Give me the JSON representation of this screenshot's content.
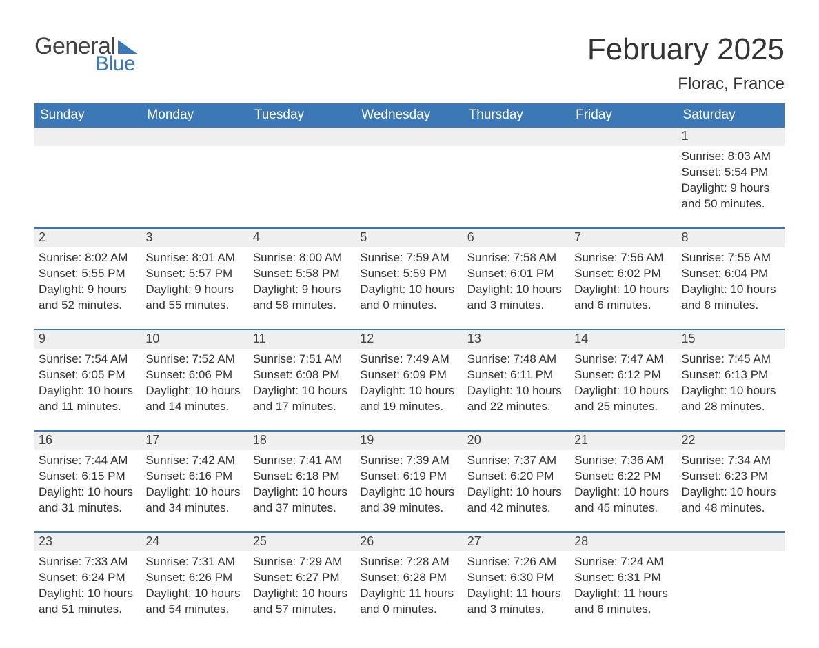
{
  "logo": {
    "text1": "General",
    "text2": "Blue"
  },
  "title": "February 2025",
  "location": "Florac, France",
  "colors": {
    "accent": "#3b78b5",
    "header_text": "#ffffff",
    "daynum_bg": "#efefef",
    "text": "#333333",
    "background": "#ffffff"
  },
  "days_of_week": [
    "Sunday",
    "Monday",
    "Tuesday",
    "Wednesday",
    "Thursday",
    "Friday",
    "Saturday"
  ],
  "weeks": [
    [
      {
        "n": "",
        "sunrise": "",
        "sunset": "",
        "daylight": ""
      },
      {
        "n": "",
        "sunrise": "",
        "sunset": "",
        "daylight": ""
      },
      {
        "n": "",
        "sunrise": "",
        "sunset": "",
        "daylight": ""
      },
      {
        "n": "",
        "sunrise": "",
        "sunset": "",
        "daylight": ""
      },
      {
        "n": "",
        "sunrise": "",
        "sunset": "",
        "daylight": ""
      },
      {
        "n": "",
        "sunrise": "",
        "sunset": "",
        "daylight": ""
      },
      {
        "n": "1",
        "sunrise": "8:03 AM",
        "sunset": "5:54 PM",
        "daylight": "9 hours and 50 minutes."
      }
    ],
    [
      {
        "n": "2",
        "sunrise": "8:02 AM",
        "sunset": "5:55 PM",
        "daylight": "9 hours and 52 minutes."
      },
      {
        "n": "3",
        "sunrise": "8:01 AM",
        "sunset": "5:57 PM",
        "daylight": "9 hours and 55 minutes."
      },
      {
        "n": "4",
        "sunrise": "8:00 AM",
        "sunset": "5:58 PM",
        "daylight": "9 hours and 58 minutes."
      },
      {
        "n": "5",
        "sunrise": "7:59 AM",
        "sunset": "5:59 PM",
        "daylight": "10 hours and 0 minutes."
      },
      {
        "n": "6",
        "sunrise": "7:58 AM",
        "sunset": "6:01 PM",
        "daylight": "10 hours and 3 minutes."
      },
      {
        "n": "7",
        "sunrise": "7:56 AM",
        "sunset": "6:02 PM",
        "daylight": "10 hours and 6 minutes."
      },
      {
        "n": "8",
        "sunrise": "7:55 AM",
        "sunset": "6:04 PM",
        "daylight": "10 hours and 8 minutes."
      }
    ],
    [
      {
        "n": "9",
        "sunrise": "7:54 AM",
        "sunset": "6:05 PM",
        "daylight": "10 hours and 11 minutes."
      },
      {
        "n": "10",
        "sunrise": "7:52 AM",
        "sunset": "6:06 PM",
        "daylight": "10 hours and 14 minutes."
      },
      {
        "n": "11",
        "sunrise": "7:51 AM",
        "sunset": "6:08 PM",
        "daylight": "10 hours and 17 minutes."
      },
      {
        "n": "12",
        "sunrise": "7:49 AM",
        "sunset": "6:09 PM",
        "daylight": "10 hours and 19 minutes."
      },
      {
        "n": "13",
        "sunrise": "7:48 AM",
        "sunset": "6:11 PM",
        "daylight": "10 hours and 22 minutes."
      },
      {
        "n": "14",
        "sunrise": "7:47 AM",
        "sunset": "6:12 PM",
        "daylight": "10 hours and 25 minutes."
      },
      {
        "n": "15",
        "sunrise": "7:45 AM",
        "sunset": "6:13 PM",
        "daylight": "10 hours and 28 minutes."
      }
    ],
    [
      {
        "n": "16",
        "sunrise": "7:44 AM",
        "sunset": "6:15 PM",
        "daylight": "10 hours and 31 minutes."
      },
      {
        "n": "17",
        "sunrise": "7:42 AM",
        "sunset": "6:16 PM",
        "daylight": "10 hours and 34 minutes."
      },
      {
        "n": "18",
        "sunrise": "7:41 AM",
        "sunset": "6:18 PM",
        "daylight": "10 hours and 37 minutes."
      },
      {
        "n": "19",
        "sunrise": "7:39 AM",
        "sunset": "6:19 PM",
        "daylight": "10 hours and 39 minutes."
      },
      {
        "n": "20",
        "sunrise": "7:37 AM",
        "sunset": "6:20 PM",
        "daylight": "10 hours and 42 minutes."
      },
      {
        "n": "21",
        "sunrise": "7:36 AM",
        "sunset": "6:22 PM",
        "daylight": "10 hours and 45 minutes."
      },
      {
        "n": "22",
        "sunrise": "7:34 AM",
        "sunset": "6:23 PM",
        "daylight": "10 hours and 48 minutes."
      }
    ],
    [
      {
        "n": "23",
        "sunrise": "7:33 AM",
        "sunset": "6:24 PM",
        "daylight": "10 hours and 51 minutes."
      },
      {
        "n": "24",
        "sunrise": "7:31 AM",
        "sunset": "6:26 PM",
        "daylight": "10 hours and 54 minutes."
      },
      {
        "n": "25",
        "sunrise": "7:29 AM",
        "sunset": "6:27 PM",
        "daylight": "10 hours and 57 minutes."
      },
      {
        "n": "26",
        "sunrise": "7:28 AM",
        "sunset": "6:28 PM",
        "daylight": "11 hours and 0 minutes."
      },
      {
        "n": "27",
        "sunrise": "7:26 AM",
        "sunset": "6:30 PM",
        "daylight": "11 hours and 3 minutes."
      },
      {
        "n": "28",
        "sunrise": "7:24 AM",
        "sunset": "6:31 PM",
        "daylight": "11 hours and 6 minutes."
      },
      {
        "n": "",
        "sunrise": "",
        "sunset": "",
        "daylight": ""
      }
    ]
  ],
  "labels": {
    "sunrise": "Sunrise:",
    "sunset": "Sunset:",
    "daylight": "Daylight:"
  }
}
